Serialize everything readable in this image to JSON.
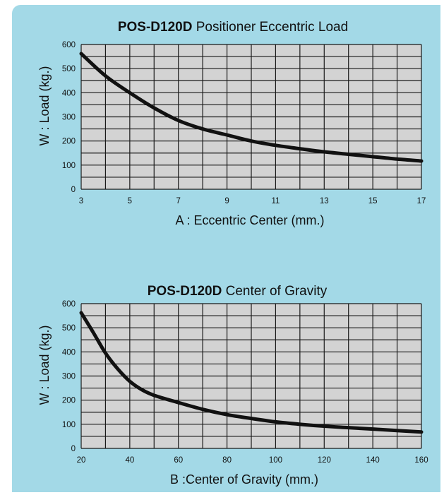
{
  "colors": {
    "panel": "#a3d9e7",
    "plot_bg": "#d3d3d3",
    "grid": "#1a1a1a",
    "curve": "#111111"
  },
  "chart_data": [
    {
      "type": "line",
      "title_bold": "POS-D120D",
      "title_rest": "Positioner Eccentric Load",
      "xlabel": "A : Eccentric Center (mm.)",
      "ylabel": "W : Load (kg.)",
      "xlim": [
        3,
        17
      ],
      "ylim": [
        0,
        600
      ],
      "x_ticks": [
        3,
        5,
        7,
        9,
        11,
        13,
        15,
        17
      ],
      "y_ticks": [
        0,
        100,
        200,
        300,
        400,
        500,
        600
      ],
      "grid": true,
      "grid_cols": 14,
      "grid_rows": 12,
      "series": [
        {
          "x": [
            3,
            4,
            5,
            6,
            7,
            8,
            9,
            10,
            11,
            12,
            13,
            14,
            15,
            16,
            17
          ],
          "y": [
            562,
            470,
            400,
            337,
            285,
            250,
            225,
            200,
            182,
            168,
            155,
            145,
            135,
            125,
            117
          ]
        }
      ]
    },
    {
      "type": "line",
      "title_bold": "POS-D120D",
      "title_rest": "Center of Gravity",
      "xlabel": "B :Center of Gravity (mm.)",
      "ylabel": "W : Load (kg.)",
      "xlim": [
        20,
        160
      ],
      "ylim": [
        0,
        600
      ],
      "x_ticks": [
        20,
        40,
        60,
        80,
        100,
        120,
        140,
        160
      ],
      "y_ticks": [
        0,
        100,
        200,
        300,
        400,
        500,
        600
      ],
      "grid": true,
      "grid_cols": 14,
      "grid_rows": 12,
      "series": [
        {
          "x": [
            20,
            25,
            30,
            35,
            40,
            45,
            50,
            60,
            70,
            80,
            90,
            100,
            110,
            120,
            130,
            140,
            150,
            160
          ],
          "y": [
            562,
            480,
            395,
            330,
            278,
            243,
            220,
            190,
            162,
            140,
            124,
            110,
            100,
            92,
            86,
            80,
            74,
            68
          ]
        }
      ]
    }
  ]
}
